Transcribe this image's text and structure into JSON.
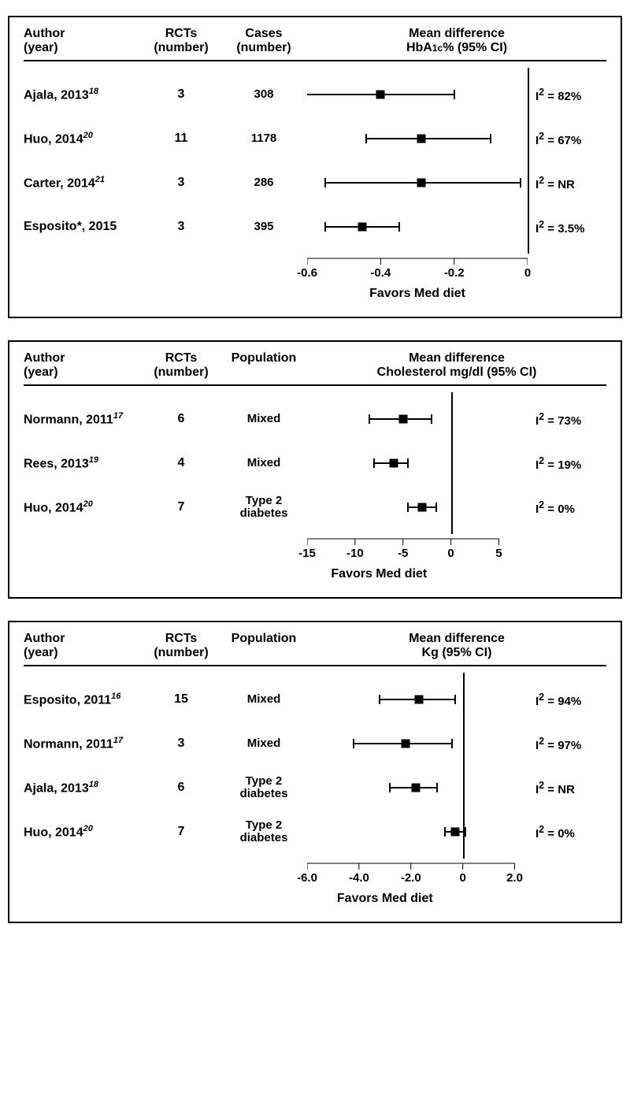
{
  "colors": {
    "fg": "#000000",
    "bg": "#ffffff"
  },
  "panels": [
    {
      "id": "hba1c",
      "headers": {
        "author": "Author\n(year)",
        "rcts": "RCTs\n(number)",
        "info": "Cases\n(number)",
        "plot_line1": "Mean difference",
        "plot_line2_html": "HbA<span class='sub1c'>1c</span>% (95% CI)"
      },
      "axis": {
        "min": -0.6,
        "max": 0.0,
        "ref": 0.0,
        "ticks": [
          -0.6,
          -0.4,
          -0.2,
          0
        ],
        "tick_labels": [
          "-0.6",
          "-0.4",
          "-0.2",
          "0"
        ],
        "label": "Favors Med diet",
        "plot_left_frac": 0.0,
        "plot_right_frac": 1.0
      },
      "rows": [
        {
          "author": "Ajala, 2013",
          "ref": "18",
          "rcts": "3",
          "info": "308",
          "est": -0.4,
          "lo": -0.62,
          "hi": -0.2,
          "i2_html": "I<sup>2</sup> = 82%"
        },
        {
          "author": "Huo, 2014",
          "ref": "20",
          "rcts": "11",
          "info": "1178",
          "est": -0.29,
          "lo": -0.44,
          "hi": -0.1,
          "i2_html": "I<sup>2</sup> = 67%"
        },
        {
          "author": "Carter, 2014",
          "ref": "21",
          "rcts": "3",
          "info": "286",
          "est": -0.29,
          "lo": -0.55,
          "hi": -0.02,
          "i2_html": "I<sup>2</sup> = NR"
        },
        {
          "author": "Esposito*, 2015",
          "ref": "",
          "rcts": "3",
          "info": "395",
          "est": -0.45,
          "lo": -0.55,
          "hi": -0.35,
          "i2_html": "I<sup>2</sup> = 3.5%"
        }
      ]
    },
    {
      "id": "chol",
      "headers": {
        "author": "Author\n(year)",
        "rcts": "RCTs\n(number)",
        "info": "Population",
        "plot_line1": "Mean difference",
        "plot_line2_html": "Cholesterol mg/dl (95% CI)"
      },
      "axis": {
        "min": -15,
        "max": 8,
        "ref": 0,
        "ticks": [
          -15,
          -10,
          -5,
          0,
          5
        ],
        "tick_labels": [
          "-15",
          "-10",
          "-5",
          "0",
          "5"
        ],
        "label": "Favors Med diet",
        "plot_left_frac": 0.0,
        "plot_right_frac": 1.0
      },
      "rows": [
        {
          "author": "Normann, 2011",
          "ref": "17",
          "rcts": "6",
          "info": "Mixed",
          "est": -5.0,
          "lo": -8.5,
          "hi": -2.0,
          "i2_html": "I<sup>2</sup> = 73%"
        },
        {
          "author": "Rees, 2013",
          "ref": "19",
          "rcts": "4",
          "info": "Mixed",
          "est": -6.0,
          "lo": -8.0,
          "hi": -4.5,
          "i2_html": "I<sup>2</sup> = 19%"
        },
        {
          "author": "Huo, 2014",
          "ref": "20",
          "rcts": "7",
          "info": "Type 2\ndiabetes",
          "est": -3.0,
          "lo": -4.5,
          "hi": -1.5,
          "i2_html": "I<sup>2</sup> = 0%"
        }
      ]
    },
    {
      "id": "kg",
      "headers": {
        "author": "Author\n(year)",
        "rcts": "RCTs\n(number)",
        "info": "Population",
        "plot_line1": "Mean difference",
        "plot_line2_html": "Kg (95% CI)"
      },
      "axis": {
        "min": -6.0,
        "max": 2.5,
        "ref": 0,
        "ticks": [
          -6.0,
          -4.0,
          -2.0,
          0,
          2.0
        ],
        "tick_labels": [
          "-6.0",
          "-4.0",
          "-2.0",
          "0",
          "2.0"
        ],
        "label": "Favors Med diet",
        "plot_left_frac": 0.0,
        "plot_right_frac": 1.0
      },
      "rows": [
        {
          "author": "Esposito, 2011",
          "ref": "16",
          "rcts": "15",
          "info": "Mixed",
          "est": -1.7,
          "lo": -3.2,
          "hi": -0.3,
          "i2_html": "I<sup>2</sup> = 94%"
        },
        {
          "author": "Normann,  2011",
          "ref": "17",
          "rcts": "3",
          "info": "Mixed",
          "est": -2.2,
          "lo": -4.2,
          "hi": -0.4,
          "i2_html": "I<sup>2</sup> = 97%"
        },
        {
          "author": "Ajala, 2013",
          "ref": "18",
          "rcts": "6",
          "info": "Type 2\ndiabetes",
          "est": -1.8,
          "lo": -2.8,
          "hi": -1.0,
          "i2_html": "I<sup>2</sup> = NR"
        },
        {
          "author": "Huo, 2014",
          "ref": "20",
          "rcts": "7",
          "info": "Type 2\ndiabetes",
          "est": -0.3,
          "lo": -0.7,
          "hi": 0.1,
          "i2_html": "I<sup>2</sup> = 0%"
        }
      ]
    }
  ]
}
